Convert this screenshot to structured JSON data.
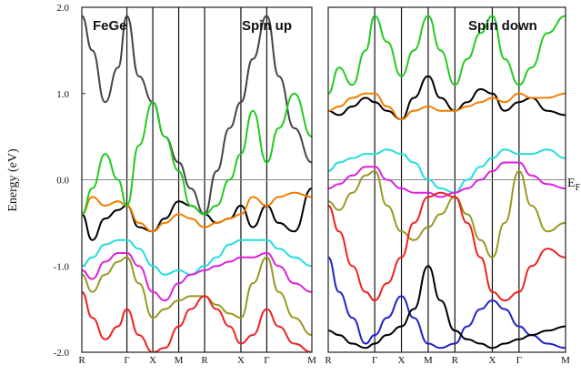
{
  "chart_data": [
    {
      "type": "line",
      "title": "",
      "panel_labels": [
        "FeGe",
        "Spin up"
      ],
      "ylabel": "Energy (eV)",
      "ylim": [
        -2.0,
        2.0
      ],
      "yticks": [
        "2.0",
        "1.0",
        "0.0",
        "-1.0",
        "-2.0"
      ],
      "yticks_values": [
        2.0,
        1.0,
        0.0,
        -1.0,
        -2.0
      ],
      "x_ticks": [
        "R",
        "Γ",
        "X",
        "M",
        "R",
        "X",
        "Γ",
        "M"
      ],
      "x_tick_positions": [
        0,
        0.87,
        1.37,
        1.87,
        2.37,
        3.07,
        3.57,
        4.44
      ],
      "fermi_level": 0.0,
      "grid": false,
      "series": [
        {
          "color": "#000000",
          "x": [
            0,
            0.2,
            0.45,
            0.7,
            0.87,
            1.1,
            1.37,
            1.6,
            1.87,
            2.1,
            2.37,
            2.6,
            2.85,
            3.07,
            3.3,
            3.57,
            3.8,
            4.1,
            4.44
          ],
          "y": [
            -0.4,
            -0.7,
            -0.45,
            -0.35,
            -0.3,
            -0.55,
            -0.6,
            -0.45,
            -0.25,
            -0.3,
            -0.4,
            -0.5,
            -0.45,
            -0.3,
            -0.55,
            -0.3,
            -0.5,
            -0.6,
            -0.1
          ]
        },
        {
          "color": "#444444",
          "x": [
            0,
            0.2,
            0.45,
            0.7,
            0.87,
            1.1,
            1.37,
            1.6,
            1.87,
            2.1,
            2.37,
            2.6,
            2.85,
            3.07,
            3.3,
            3.57,
            3.8,
            4.1,
            4.44
          ],
          "y": [
            1.9,
            1.5,
            0.9,
            1.3,
            1.9,
            1.2,
            0.9,
            0.5,
            0.2,
            -0.1,
            -0.4,
            0.1,
            0.6,
            0.9,
            1.4,
            1.9,
            1.2,
            0.6,
            0.2
          ]
        },
        {
          "color": "#f07f00",
          "x": [
            0,
            0.2,
            0.45,
            0.7,
            0.87,
            1.1,
            1.37,
            1.6,
            1.87,
            2.1,
            2.37,
            2.6,
            2.85,
            3.07,
            3.3,
            3.57,
            3.8,
            4.1,
            4.44
          ],
          "y": [
            -0.4,
            -0.2,
            -0.3,
            -0.25,
            -0.3,
            -0.5,
            -0.6,
            -0.5,
            -0.4,
            -0.45,
            -0.55,
            -0.5,
            -0.45,
            -0.4,
            -0.2,
            -0.3,
            -0.2,
            -0.15,
            -0.2
          ]
        },
        {
          "color": "#22cc22",
          "x": [
            0,
            0.2,
            0.45,
            0.7,
            0.87,
            1.1,
            1.37,
            1.6,
            1.87,
            2.1,
            2.37,
            2.6,
            2.85,
            3.07,
            3.3,
            3.57,
            3.8,
            4.1,
            4.44
          ],
          "y": [
            -0.4,
            -0.1,
            0.3,
            0.0,
            -0.3,
            0.4,
            0.9,
            0.5,
            0.1,
            -0.3,
            -0.4,
            -0.3,
            0.0,
            0.3,
            0.8,
            0.2,
            0.6,
            1.0,
            0.5
          ]
        },
        {
          "color": "#22dddd",
          "x": [
            0,
            0.2,
            0.45,
            0.7,
            0.87,
            1.1,
            1.37,
            1.6,
            1.87,
            2.1,
            2.37,
            2.6,
            2.85,
            3.07,
            3.3,
            3.57,
            3.8,
            4.1,
            4.44
          ],
          "y": [
            -1.0,
            -0.9,
            -0.75,
            -0.7,
            -0.7,
            -0.8,
            -1.0,
            -1.1,
            -1.05,
            -1.1,
            -1.0,
            -0.9,
            -0.75,
            -0.7,
            -0.7,
            -0.7,
            -0.8,
            -0.9,
            -1.0
          ]
        },
        {
          "color": "#dd22dd",
          "x": [
            0,
            0.2,
            0.45,
            0.7,
            0.87,
            1.1,
            1.37,
            1.6,
            1.87,
            2.1,
            2.37,
            2.6,
            2.85,
            3.07,
            3.3,
            3.57,
            3.8,
            4.1,
            4.44
          ],
          "y": [
            -1.05,
            -1.15,
            -0.95,
            -0.85,
            -0.85,
            -1.0,
            -1.3,
            -1.4,
            -1.2,
            -1.1,
            -1.05,
            -1.0,
            -0.95,
            -0.9,
            -0.9,
            -0.85,
            -1.0,
            -1.2,
            -1.3
          ]
        },
        {
          "color": "#999922",
          "x": [
            0,
            0.2,
            0.45,
            0.7,
            0.87,
            1.1,
            1.37,
            1.6,
            1.87,
            2.1,
            2.37,
            2.6,
            2.85,
            3.07,
            3.3,
            3.57,
            3.8,
            4.1,
            4.44
          ],
          "y": [
            -1.1,
            -1.3,
            -1.1,
            -0.95,
            -0.9,
            -1.2,
            -1.6,
            -1.5,
            -1.4,
            -1.35,
            -1.35,
            -1.45,
            -1.55,
            -1.6,
            -1.2,
            -0.9,
            -1.3,
            -1.6,
            -1.8
          ]
        },
        {
          "color": "#ee2222",
          "x": [
            0,
            0.2,
            0.45,
            0.7,
            0.87,
            1.1,
            1.37,
            1.6,
            1.87,
            2.1,
            2.37,
            2.6,
            2.85,
            3.07,
            3.3,
            3.57,
            3.8,
            4.1,
            4.44
          ],
          "y": [
            -1.3,
            -1.6,
            -1.85,
            -1.7,
            -1.5,
            -1.8,
            -2.0,
            -1.95,
            -1.7,
            -1.5,
            -1.35,
            -1.5,
            -1.7,
            -1.9,
            -1.8,
            -1.5,
            -1.7,
            -1.9,
            -2.0
          ]
        }
      ]
    },
    {
      "type": "line",
      "title": "",
      "panel_labels": [
        "Spin down"
      ],
      "ylim": [
        -2.0,
        2.0
      ],
      "x_ticks": [
        "R",
        "Γ",
        "X",
        "M",
        "R",
        "X",
        "Γ",
        "M"
      ],
      "x_tick_positions": [
        0,
        0.87,
        1.37,
        1.87,
        2.37,
        3.07,
        3.57,
        4.44
      ],
      "fermi_level": 0.0,
      "fermi_label": "E",
      "fermi_label_subscript": "F",
      "grid": false,
      "series": [
        {
          "color": "#000000",
          "x": [
            0,
            0.2,
            0.45,
            0.7,
            0.87,
            1.1,
            1.37,
            1.6,
            1.87,
            2.1,
            2.37,
            2.6,
            2.85,
            3.07,
            3.3,
            3.57,
            3.8,
            4.1,
            4.44
          ],
          "y": [
            0.8,
            0.75,
            0.85,
            0.95,
            0.9,
            0.8,
            0.7,
            0.95,
            1.2,
            0.95,
            0.8,
            0.9,
            1.05,
            1.0,
            0.8,
            0.9,
            0.95,
            0.8,
            0.75
          ]
        },
        {
          "color": "#f07f00",
          "x": [
            0,
            0.2,
            0.45,
            0.7,
            0.87,
            1.1,
            1.37,
            1.6,
            1.87,
            2.1,
            2.37,
            2.6,
            2.85,
            3.07,
            3.3,
            3.57,
            3.8,
            4.1,
            4.44
          ],
          "y": [
            0.8,
            0.85,
            0.95,
            1.0,
            1.0,
            0.85,
            0.7,
            0.8,
            0.85,
            0.8,
            0.8,
            0.85,
            0.9,
            0.95,
            0.9,
            1.0,
            0.95,
            0.95,
            1.0
          ]
        },
        {
          "color": "#22cc22",
          "x": [
            0,
            0.2,
            0.45,
            0.7,
            0.87,
            1.1,
            1.37,
            1.6,
            1.87,
            2.1,
            2.37,
            2.6,
            2.85,
            3.07,
            3.3,
            3.57,
            3.8,
            4.1,
            4.44
          ],
          "y": [
            1.0,
            1.3,
            1.1,
            1.5,
            1.9,
            1.6,
            1.2,
            1.5,
            1.9,
            1.5,
            1.1,
            1.4,
            1.7,
            1.9,
            1.4,
            1.1,
            1.3,
            1.7,
            1.9
          ]
        },
        {
          "color": "#22dddd",
          "x": [
            0,
            0.2,
            0.45,
            0.7,
            0.87,
            1.1,
            1.37,
            1.6,
            1.87,
            2.1,
            2.37,
            2.6,
            2.85,
            3.07,
            3.3,
            3.57,
            3.8,
            4.1,
            4.44
          ],
          "y": [
            0.1,
            0.2,
            0.25,
            0.3,
            0.3,
            0.35,
            0.3,
            0.2,
            0.0,
            -0.1,
            -0.15,
            0.0,
            0.15,
            0.25,
            0.35,
            0.3,
            0.3,
            0.35,
            0.25
          ]
        },
        {
          "color": "#dd22dd",
          "x": [
            0,
            0.2,
            0.45,
            0.7,
            0.87,
            1.1,
            1.37,
            1.6,
            1.87,
            2.1,
            2.37,
            2.6,
            2.85,
            3.07,
            3.3,
            3.57,
            3.8,
            4.1,
            4.44
          ],
          "y": [
            -0.1,
            -0.05,
            0.05,
            0.15,
            0.15,
            0.0,
            -0.1,
            -0.15,
            -0.15,
            -0.2,
            -0.15,
            -0.1,
            0.0,
            0.1,
            0.2,
            0.2,
            0.05,
            -0.05,
            -0.1
          ]
        },
        {
          "color": "#999922",
          "x": [
            0,
            0.2,
            0.45,
            0.7,
            0.87,
            1.1,
            1.37,
            1.6,
            1.87,
            2.1,
            2.37,
            2.6,
            2.85,
            3.07,
            3.3,
            3.57,
            3.8,
            4.1,
            4.44
          ],
          "y": [
            -0.25,
            -0.35,
            -0.15,
            0.05,
            0.1,
            -0.3,
            -0.6,
            -0.7,
            -0.55,
            -0.4,
            -0.2,
            -0.4,
            -0.7,
            -0.9,
            -0.5,
            0.1,
            -0.3,
            -0.6,
            -0.5
          ]
        },
        {
          "color": "#ee2222",
          "x": [
            0,
            0.2,
            0.45,
            0.7,
            0.87,
            1.1,
            1.37,
            1.6,
            1.87,
            2.1,
            2.37,
            2.6,
            2.85,
            3.07,
            3.3,
            3.57,
            3.8,
            4.1,
            4.44
          ],
          "y": [
            -0.3,
            -0.6,
            -1.0,
            -1.3,
            -1.4,
            -1.2,
            -0.9,
            -0.5,
            -0.2,
            -0.15,
            -0.2,
            -0.5,
            -0.9,
            -1.3,
            -1.4,
            -1.3,
            -1.0,
            -0.8,
            -0.9
          ]
        },
        {
          "color": "#2222cc",
          "x": [
            0,
            0.2,
            0.45,
            0.7,
            0.87,
            1.1,
            1.37,
            1.6,
            1.87,
            2.1,
            2.37,
            2.6,
            2.85,
            3.07,
            3.3,
            3.57,
            3.8,
            4.1,
            4.44
          ],
          "y": [
            -0.9,
            -1.3,
            -1.6,
            -1.9,
            -1.8,
            -1.6,
            -1.35,
            -1.6,
            -1.9,
            -1.95,
            -1.9,
            -1.7,
            -1.5,
            -1.4,
            -1.5,
            -1.7,
            -1.8,
            -1.9,
            -1.95
          ]
        },
        {
          "color": "#000000",
          "x": [
            0,
            0.2,
            0.45,
            0.7,
            0.87,
            1.1,
            1.37,
            1.6,
            1.87,
            2.1,
            2.37,
            2.6,
            2.85,
            3.07,
            3.3,
            3.57,
            3.8,
            4.1,
            4.44
          ],
          "y": [
            -1.75,
            -1.8,
            -1.9,
            -1.95,
            -1.9,
            -1.8,
            -1.7,
            -1.5,
            -1.0,
            -1.4,
            -1.75,
            -1.85,
            -1.9,
            -1.95,
            -1.9,
            -1.85,
            -1.8,
            -1.75,
            -1.7
          ]
        }
      ]
    }
  ]
}
